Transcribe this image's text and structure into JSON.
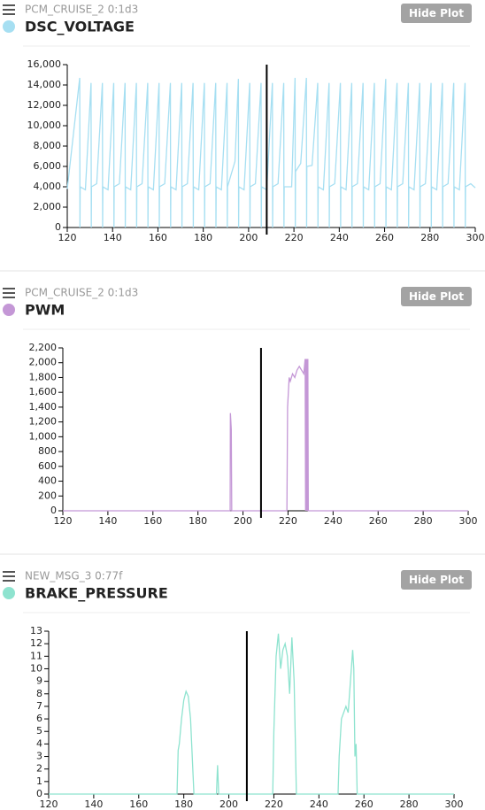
{
  "chart_data": [
    {
      "type": "line",
      "subtitle": "PCM_CRUISE_2 0:1d3",
      "button": "Hide Plot",
      "cursor_x": 208,
      "xlim": [
        120,
        300
      ],
      "xticks": [
        120,
        140,
        160,
        180,
        200,
        220,
        240,
        260,
        280,
        300
      ],
      "ylim": [
        0,
        16000
      ],
      "yticks": [
        0,
        {
          "value": 2000,
          "label": "2,000"
        },
        {
          "value": 4000,
          "label": "4,000"
        },
        {
          "value": 6000,
          "label": "6,000"
        },
        {
          "value": 8000,
          "label": "8,000"
        },
        {
          "value": 10000,
          "label": "10,000"
        },
        {
          "value": 12000,
          "label": "12,000"
        },
        {
          "value": 14000,
          "label": "14,000"
        },
        {
          "value": 16000,
          "label": "16,000"
        }
      ],
      "x": [
        120,
        125.5,
        125.6,
        125.7,
        128,
        130.5,
        130.6,
        130.7,
        133,
        135.5,
        135.6,
        135.7,
        138,
        140.5,
        140.6,
        140.7,
        143,
        145.5,
        145.6,
        145.7,
        148,
        150.5,
        150.6,
        150.7,
        153,
        155.5,
        155.6,
        155.7,
        158,
        160.5,
        160.6,
        160.7,
        163,
        165.5,
        165.6,
        165.7,
        168,
        170.5,
        170.6,
        170.7,
        173,
        175.5,
        175.6,
        175.7,
        178,
        180.5,
        180.6,
        180.7,
        183,
        185.5,
        185.6,
        185.7,
        188,
        190.5,
        190.6,
        190.7,
        194,
        195.5,
        195.6,
        195.7,
        198,
        200.5,
        200.6,
        200.7,
        203,
        205.5,
        205.6,
        205.7,
        208,
        210.5,
        210.6,
        210.7,
        213,
        215.5,
        215.6,
        215.7,
        219,
        220.5,
        220.6,
        220.7,
        223,
        225.5,
        225.6,
        225.7,
        228,
        230.5,
        230.6,
        230.7,
        233,
        235.5,
        235.6,
        235.7,
        238,
        240.5,
        240.6,
        240.7,
        243,
        245.5,
        245.6,
        245.7,
        248,
        250.5,
        250.6,
        250.7,
        253,
        255.5,
        255.6,
        255.7,
        258,
        260.5,
        260.6,
        260.7,
        263,
        265.5,
        265.6,
        265.7,
        268,
        270.5,
        270.6,
        270.7,
        273,
        275.5,
        275.6,
        275.7,
        278,
        280.5,
        280.6,
        280.7,
        283,
        285.5,
        285.6,
        285.7,
        288,
        290.5,
        290.6,
        290.7,
        293,
        295.5,
        295.6,
        295.7,
        298,
        300
      ],
      "series": [
        {
          "name": "DSC_VOLTAGE",
          "color": "#a6dff2",
          "values": [
            3800,
            14700,
            0,
            4000,
            3700,
            14200,
            0,
            4000,
            4300,
            14200,
            0,
            4000,
            3700,
            14200,
            0,
            4000,
            4300,
            14200,
            0,
            4000,
            3700,
            14200,
            0,
            4000,
            4300,
            14200,
            0,
            4000,
            3700,
            14200,
            0,
            4000,
            4300,
            14200,
            0,
            4000,
            3700,
            14200,
            0,
            4000,
            4300,
            14200,
            0,
            4000,
            3700,
            14200,
            0,
            4000,
            4300,
            14200,
            0,
            4000,
            3700,
            14200,
            0,
            4000,
            6500,
            14600,
            0,
            4000,
            3700,
            14200,
            0,
            4000,
            4300,
            14200,
            0,
            4000,
            3700,
            14200,
            0,
            4000,
            4300,
            14200,
            0,
            4000,
            4000,
            14700,
            0,
            5500,
            6300,
            14700,
            0,
            6000,
            6100,
            14200,
            0,
            4000,
            3700,
            14200,
            0,
            4000,
            4300,
            14200,
            0,
            4000,
            3700,
            14200,
            0,
            4000,
            4300,
            14200,
            0,
            4000,
            3700,
            14200,
            0,
            4000,
            4300,
            14600,
            0,
            4000,
            3700,
            14200,
            0,
            4000,
            4300,
            14200,
            0,
            4000,
            3700,
            14200,
            0,
            4000,
            4300,
            14200,
            0,
            4000,
            3700,
            14200,
            0,
            4000,
            4300,
            14200,
            0,
            4000,
            3700,
            14200,
            0,
            4000,
            4300,
            3900
          ]
        }
      ]
    },
    {
      "type": "line",
      "subtitle": "PCM_CRUISE_2 0:1d3",
      "button": "Hide Plot",
      "cursor_x": 208,
      "xlim": [
        120,
        300
      ],
      "xticks": [
        120,
        140,
        160,
        180,
        200,
        220,
        240,
        260,
        280,
        300
      ],
      "ylim": [
        0,
        2200
      ],
      "yticks": [
        0,
        200,
        400,
        600,
        800,
        {
          "value": 1000,
          "label": "1,000"
        },
        {
          "value": 1200,
          "label": "1,200"
        },
        {
          "value": 1400,
          "label": "1,400"
        },
        {
          "value": 1600,
          "label": "1,600"
        },
        {
          "value": 1800,
          "label": "1,800"
        },
        {
          "value": 2000,
          "label": "2,000"
        },
        {
          "value": 2200,
          "label": "2,200"
        }
      ],
      "x": [
        120,
        194.3,
        194.4,
        194.8,
        195,
        219.5,
        219.8,
        220.5,
        221,
        222,
        223,
        224,
        225,
        226,
        227,
        227.6,
        227.8,
        228,
        228.2,
        228.4,
        228.6,
        228.8,
        229,
        229.1,
        300
      ],
      "series": [
        {
          "name": "PWM",
          "color": "#c497d6",
          "values": [
            0,
            0,
            1320,
            1100,
            0,
            0,
            1400,
            1800,
            1750,
            1850,
            1800,
            1900,
            1950,
            1900,
            1850,
            2050,
            0,
            2050,
            0,
            2050,
            0,
            2050,
            0,
            0,
            0
          ]
        }
      ]
    },
    {
      "type": "line",
      "subtitle": "NEW_MSG_3 0:77f",
      "button": "Hide Plot",
      "cursor_x": 208,
      "xlim": [
        120,
        300
      ],
      "xticks": [
        120,
        140,
        160,
        180,
        200,
        220,
        240,
        260,
        280,
        300
      ],
      "ylim": [
        0,
        13
      ],
      "yticks": [
        0,
        1,
        2,
        3,
        4,
        5,
        6,
        7,
        8,
        9,
        10,
        11,
        12,
        13
      ],
      "x": [
        120,
        177,
        177.5,
        178,
        179,
        180,
        181,
        182,
        183,
        184,
        184.5,
        194.5,
        195,
        195.5,
        219.5,
        220,
        221,
        222,
        223,
        224,
        225,
        226,
        227,
        228,
        229,
        230,
        248.5,
        249,
        250,
        251,
        252,
        253,
        254,
        255,
        255.5,
        256,
        256.5,
        257,
        300
      ],
      "series": [
        {
          "name": "BRAKE_PRESSURE",
          "color": "#8ee3cf",
          "values": [
            0,
            0,
            3.5,
            4,
            6,
            7.5,
            8.2,
            7.8,
            6,
            2,
            0,
            0,
            2.3,
            0,
            0,
            5,
            11,
            12.8,
            10,
            11.5,
            12,
            11,
            8,
            12.5,
            9,
            0,
            0,
            3,
            6,
            6.5,
            7,
            6.5,
            9,
            11.5,
            10,
            3,
            4,
            0,
            0
          ]
        }
      ]
    }
  ]
}
